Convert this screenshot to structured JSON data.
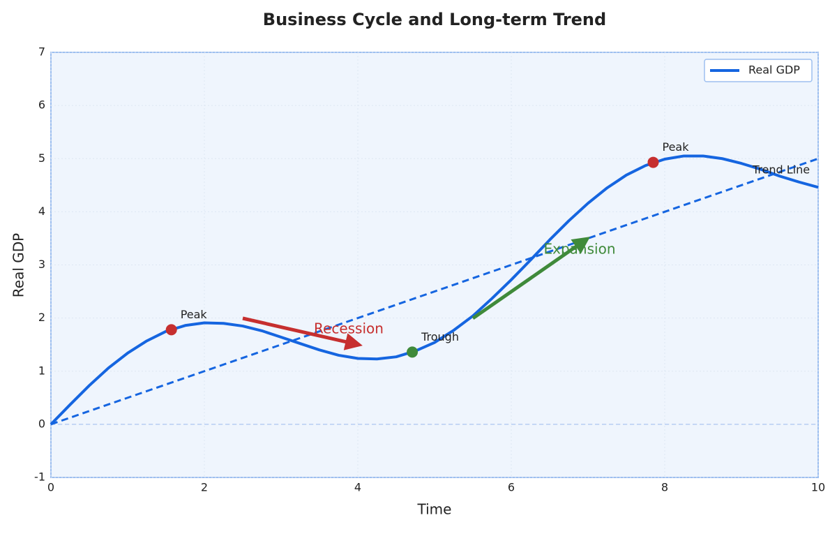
{
  "chart_data": {
    "type": "line",
    "title": "Business Cycle and Long-term Trend",
    "x_label": "Time",
    "y_label": "Real GDP",
    "x": [
      0,
      0.25,
      0.5,
      0.75,
      1,
      1.25,
      1.5,
      1.75,
      2,
      2.25,
      2.5,
      2.75,
      3,
      3.25,
      3.5,
      3.75,
      4,
      4.25,
      4.5,
      4.75,
      5,
      5.25,
      5.5,
      5.75,
      6,
      6.25,
      6.5,
      6.75,
      7,
      7.25,
      7.5,
      7.75,
      8,
      8.25,
      8.5,
      8.75,
      9,
      9.25,
      9.5,
      9.75,
      10
    ],
    "series": [
      {
        "name": "Real GDP",
        "color": "#1565e0",
        "values": [
          0,
          0.37,
          0.73,
          1.06,
          1.34,
          1.57,
          1.75,
          1.86,
          1.91,
          1.9,
          1.85,
          1.76,
          1.64,
          1.52,
          1.4,
          1.3,
          1.24,
          1.23,
          1.27,
          1.38,
          1.54,
          1.77,
          2.04,
          2.37,
          2.72,
          3.09,
          3.47,
          3.83,
          4.16,
          4.45,
          4.69,
          4.87,
          4.99,
          5.05,
          5.05,
          5,
          4.91,
          4.8,
          4.67,
          4.56,
          4.46
        ]
      }
    ],
    "trend": {
      "label": "Trend Line",
      "x": [
        0,
        10
      ],
      "values": [
        0,
        5
      ],
      "color": "#1565e0"
    },
    "points": [
      {
        "label": "Peak",
        "x": 1.57,
        "y": 1.78,
        "color": "#c62f2f"
      },
      {
        "label": "Trough",
        "x": 4.71,
        "y": 1.36,
        "color": "#3f8a3a"
      },
      {
        "label": "Peak",
        "x": 7.85,
        "y": 4.93,
        "color": "#c62f2f"
      }
    ],
    "phases": [
      {
        "label": "Recession",
        "color": "#c62f2f"
      },
      {
        "label": "Expansion",
        "color": "#3f8a3a"
      }
    ],
    "xlim": [
      0,
      10
    ],
    "ylim": [
      -1,
      7
    ],
    "xticks": [
      0,
      2,
      4,
      6,
      8,
      10
    ],
    "yticks": [
      -1,
      0,
      1,
      2,
      3,
      4,
      5,
      6,
      7
    ],
    "grid": true,
    "legend": "upper right"
  }
}
